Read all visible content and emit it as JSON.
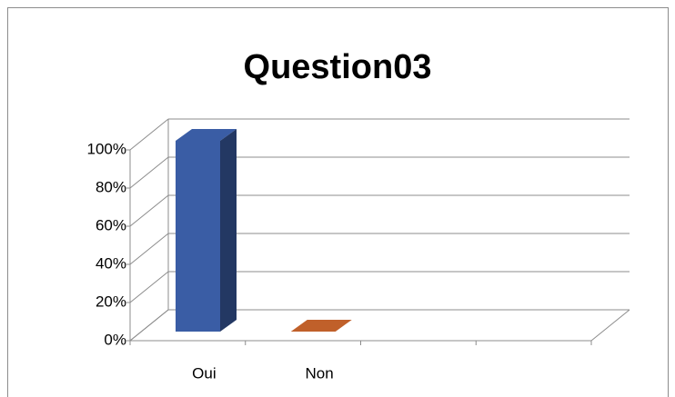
{
  "chart_data": {
    "type": "bar",
    "title": "Question03",
    "categories": [
      "Oui",
      "Non",
      null,
      null
    ],
    "values": [
      100,
      0,
      null,
      null
    ],
    "colors": [
      "#3a5da5",
      "#c0602a"
    ],
    "ylim": [
      0,
      100
    ],
    "yticks": [
      {
        "value": 0,
        "label": "0%"
      },
      {
        "value": 20,
        "label": "20%"
      },
      {
        "value": 40,
        "label": "40%"
      },
      {
        "value": 60,
        "label": "60%"
      },
      {
        "value": 80,
        "label": "80%"
      },
      {
        "value": 100,
        "label": "100%"
      }
    ],
    "grid": true
  }
}
